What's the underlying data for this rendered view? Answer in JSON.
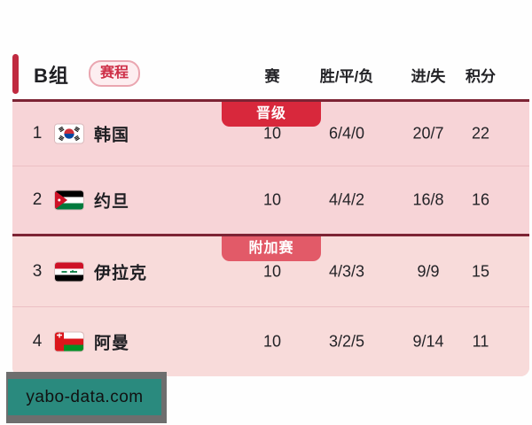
{
  "header": {
    "group_label": "B组",
    "schedule_badge": "赛程",
    "columns": {
      "played": "赛",
      "wdl": "胜/平/负",
      "goals": "进/失",
      "points": "积分"
    }
  },
  "table": {
    "rows": [
      {
        "rank": "1",
        "team": "韩国",
        "flag": "south-korea",
        "played": "10",
        "wdl": "6/4/0",
        "goals": "20/7",
        "points": "22",
        "zone_badge": "晋级",
        "zone": "qualify"
      },
      {
        "rank": "2",
        "team": "约旦",
        "flag": "jordan",
        "played": "10",
        "wdl": "4/4/2",
        "goals": "16/8",
        "points": "16",
        "zone_badge": "",
        "zone": ""
      },
      {
        "rank": "3",
        "team": "伊拉克",
        "flag": "iraq",
        "played": "10",
        "wdl": "4/3/3",
        "goals": "9/9",
        "points": "15",
        "zone_badge": "附加赛",
        "zone": "playoff"
      },
      {
        "rank": "4",
        "team": "阿曼",
        "flag": "oman",
        "played": "10",
        "wdl": "3/2/5",
        "goals": "9/14",
        "points": "11",
        "zone_badge": "",
        "zone": ""
      }
    ]
  },
  "watermark": {
    "text": "yabo-data.com"
  },
  "colors": {
    "accent_red": "#c02a40",
    "divider_maroon": "#7d2334",
    "qualify_badge": "#d8283c",
    "playoff_badge": "#e25a68",
    "body_pink": "#f7d4d7",
    "watermark_teal": "#2a8a7e",
    "watermark_gray": "#6e6e6e"
  }
}
